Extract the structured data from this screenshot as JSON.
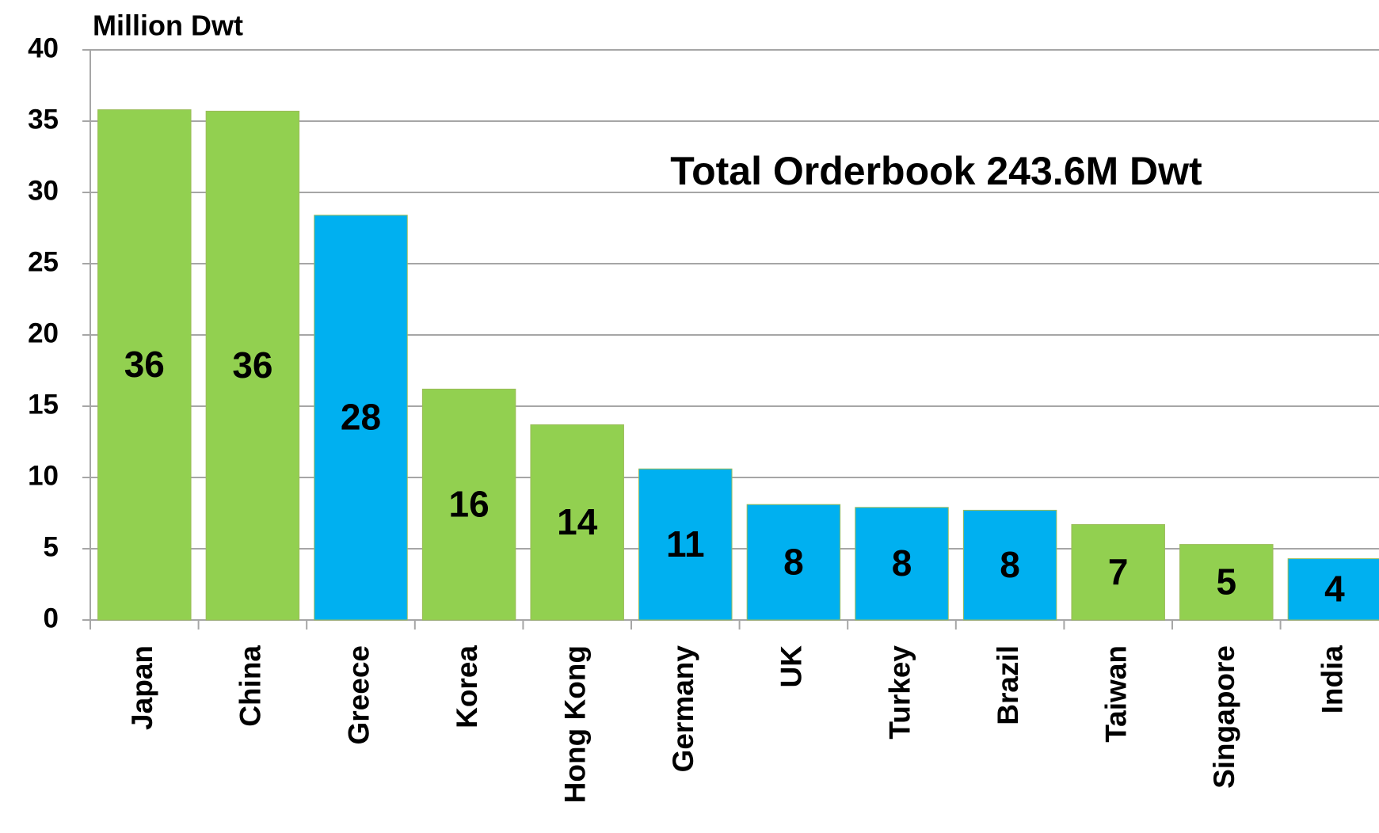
{
  "chart_data": {
    "type": "bar",
    "title": "Million Dwt",
    "annotation": "Total Orderbook 243.6M Dwt",
    "categories": [
      "Japan",
      "China",
      "Greece",
      "Korea",
      "Hong Kong",
      "Germany",
      "UK",
      "Turkey",
      "Brazil",
      "Taiwan",
      "Singapore",
      "India"
    ],
    "values": [
      35.8,
      35.7,
      28.4,
      16.2,
      13.7,
      10.6,
      8.1,
      7.9,
      7.7,
      6.7,
      5.3,
      4.3
    ],
    "value_labels": [
      "36",
      "36",
      "28",
      "16",
      "14",
      "11",
      "8",
      "8",
      "8",
      "7",
      "5",
      "4"
    ],
    "colors": [
      "#92d050",
      "#92d050",
      "#00b0f0",
      "#92d050",
      "#92d050",
      "#00b0f0",
      "#00b0f0",
      "#00b0f0",
      "#00b0f0",
      "#92d050",
      "#92d050",
      "#00b0f0"
    ],
    "ylim": [
      0,
      40
    ],
    "yticks": [
      0,
      5,
      10,
      15,
      20,
      25,
      30,
      35,
      40
    ],
    "grid": true
  }
}
